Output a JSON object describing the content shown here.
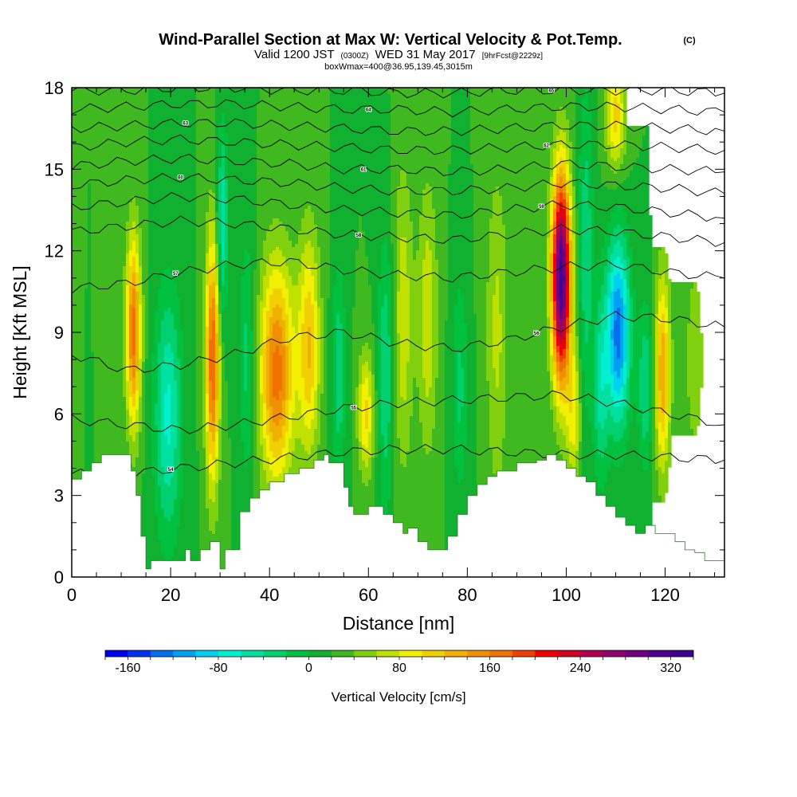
{
  "chart_data": {
    "type": "heatmap",
    "title": "Wind-Parallel Section at Max W: Vertical Velocity & Pot.Temp.",
    "title_mark": "(C)",
    "subtitle": {
      "part1": "Valid 1200 JST",
      "part2": "(0300Z)",
      "part3": "WED 31 May 2017",
      "part4": "[9hrFcst@2229z]"
    },
    "box_info": "boxWmax=400@36.95,139.45,3015m",
    "xlabel": "Distance [nm]",
    "ylabel": "Height [Kft MSL]",
    "xlim": [
      0,
      132
    ],
    "ylim": [
      0,
      18
    ],
    "x_ticks": [
      0,
      20,
      40,
      60,
      80,
      100,
      120
    ],
    "y_ticks": [
      0,
      3,
      6,
      9,
      12,
      15,
      18
    ],
    "x_tick_labels": [
      "0",
      "20",
      "40",
      "60",
      "80",
      "100",
      "120"
    ],
    "y_tick_labels": [
      "0",
      "3",
      "6",
      "9",
      "12",
      "15",
      "18"
    ],
    "terrain_kft": [
      [
        0,
        3.6
      ],
      [
        2,
        3.9
      ],
      [
        4,
        4.2
      ],
      [
        6,
        4.5
      ],
      [
        11,
        4.5
      ],
      [
        12,
        3.9
      ],
      [
        13,
        3.0
      ],
      [
        14,
        1.5
      ],
      [
        15,
        0.3
      ],
      [
        16,
        0.6
      ],
      [
        18,
        0.6
      ],
      [
        22,
        0.6
      ],
      [
        23,
        1.0
      ],
      [
        24,
        0.6
      ],
      [
        26,
        1.0
      ],
      [
        28,
        1.3
      ],
      [
        30,
        0.3
      ],
      [
        31,
        1.0
      ],
      [
        34,
        2.4
      ],
      [
        36,
        2.9
      ],
      [
        38,
        3.2
      ],
      [
        40,
        3.5
      ],
      [
        43,
        3.8
      ],
      [
        46,
        4.0
      ],
      [
        49,
        4.3
      ],
      [
        51,
        4.5
      ],
      [
        52,
        4.2
      ],
      [
        55,
        3.3
      ],
      [
        56,
        2.6
      ],
      [
        57,
        2.3
      ],
      [
        60,
        2.6
      ],
      [
        63,
        2.3
      ],
      [
        65,
        2.0
      ],
      [
        67,
        1.6
      ],
      [
        68,
        1.8
      ],
      [
        70,
        1.3
      ],
      [
        72,
        1.0
      ],
      [
        74,
        1.0
      ],
      [
        76,
        1.5
      ],
      [
        78,
        2.3
      ],
      [
        80,
        3.0
      ],
      [
        82,
        3.4
      ],
      [
        84,
        3.7
      ],
      [
        86,
        3.9
      ],
      [
        90,
        4.2
      ],
      [
        94,
        4.3
      ],
      [
        96,
        4.5
      ],
      [
        98,
        4.3
      ],
      [
        100,
        4.0
      ],
      [
        102,
        3.7
      ],
      [
        104,
        3.5
      ],
      [
        106,
        3.0
      ],
      [
        108,
        2.6
      ],
      [
        110,
        2.2
      ],
      [
        112,
        1.9
      ],
      [
        114,
        1.6
      ],
      [
        116,
        1.9
      ],
      [
        118,
        1.6
      ],
      [
        120,
        1.6
      ],
      [
        122,
        1.3
      ],
      [
        124,
        1.0
      ],
      [
        126,
        0.9
      ],
      [
        128,
        0.6
      ],
      [
        132,
        0.6
      ]
    ],
    "w_base_cms": 20,
    "w_features": [
      {
        "x": 12.5,
        "z": 9.0,
        "sx": 1.5,
        "sz": 3.5,
        "amp": 150
      },
      {
        "x": 19.5,
        "z": 6.0,
        "sx": 2.8,
        "sz": 4.5,
        "amp": -85
      },
      {
        "x": 28.5,
        "z": 8.0,
        "sx": 1.4,
        "sz": 4.5,
        "amp": 160
      },
      {
        "x": 30.5,
        "z": 13.0,
        "sx": 1.1,
        "sz": 3.5,
        "amp": -80
      },
      {
        "x": 35.5,
        "z": 8.0,
        "sx": 1.6,
        "sz": 4.5,
        "amp": -50
      },
      {
        "x": 41.5,
        "z": 7.5,
        "sx": 3.4,
        "sz": 4.0,
        "amp": 150
      },
      {
        "x": 48.0,
        "z": 8.5,
        "sx": 2.2,
        "sz": 4.0,
        "amp": 100
      },
      {
        "x": 54.0,
        "z": 7.5,
        "sx": 1.4,
        "sz": 4.0,
        "amp": -55
      },
      {
        "x": 59.5,
        "z": 6.0,
        "sx": 1.6,
        "sz": 2.2,
        "amp": 85
      },
      {
        "x": 63.5,
        "z": 7.5,
        "sx": 1.6,
        "sz": 5.0,
        "amp": -60
      },
      {
        "x": 67.0,
        "z": 9.5,
        "sx": 2.0,
        "sz": 5.5,
        "amp": 55
      },
      {
        "x": 72.0,
        "z": 9.5,
        "sx": 2.0,
        "sz": 5.0,
        "amp": 55
      },
      {
        "x": 78.5,
        "z": 7.0,
        "sx": 1.6,
        "sz": 4.0,
        "amp": -45
      },
      {
        "x": 86.0,
        "z": 9.0,
        "sx": 2.2,
        "sz": 6.0,
        "amp": 45
      },
      {
        "x": 99.0,
        "z": 11.0,
        "sx": 1.9,
        "sz": 3.8,
        "amp": 310
      },
      {
        "x": 101.5,
        "z": 6.0,
        "sx": 1.5,
        "sz": 2.5,
        "amp": 70
      },
      {
        "x": 104.0,
        "z": 12.0,
        "sx": 1.5,
        "sz": 6.0,
        "amp": -55
      },
      {
        "x": 107.0,
        "z": 7.0,
        "sx": 1.5,
        "sz": 3.5,
        "amp": -65
      },
      {
        "x": 110.5,
        "z": 9.0,
        "sx": 2.4,
        "sz": 3.5,
        "amp": -150
      },
      {
        "x": 116.0,
        "z": 7.0,
        "sx": 1.5,
        "sz": 3.0,
        "amp": -60
      },
      {
        "x": 119.5,
        "z": 7.5,
        "sx": 1.5,
        "sz": 3.5,
        "amp": 120
      },
      {
        "x": 110.0,
        "z": 17.0,
        "sx": 2.0,
        "sz": 2.0,
        "amp": 90
      },
      {
        "x": 126.0,
        "z": 8.0,
        "sx": 3.0,
        "sz": 6.0,
        "amp": 25
      }
    ],
    "colorbar": {
      "min": -180,
      "max": 340,
      "step": 20,
      "ticks": [
        -160,
        -80,
        0,
        80,
        160,
        240,
        320
      ],
      "tick_labels": [
        "-160",
        "-80",
        "0",
        "80",
        "160",
        "240",
        "320"
      ],
      "title": "Vertical Velocity [cm/s]",
      "colors": [
        "#0000f0",
        "#0030f0",
        "#0070f0",
        "#00a0f0",
        "#00d0f0",
        "#00f0d0",
        "#00e0a0",
        "#00d070",
        "#00c040",
        "#10b030",
        "#40b820",
        "#80d010",
        "#c0e000",
        "#f0f000",
        "#f0d000",
        "#f0b000",
        "#f09000",
        "#f07000",
        "#f04000",
        "#f00000",
        "#d00020",
        "#b00050",
        "#900070",
        "#700080",
        "#500090",
        "#400090"
      ]
    },
    "theta_contours": [
      {
        "label": "54",
        "z": [
          3.8,
          3.8,
          4.0,
          4.2,
          4.4,
          4.6,
          4.7,
          4.7,
          4.6,
          4.5,
          4.5,
          4.4,
          4.3
        ]
      },
      {
        "label": "55",
        "z": [
          5.8,
          5.6,
          5.4,
          5.6,
          5.9,
          6.2,
          6.4,
          6.5,
          6.6,
          6.7,
          6.4,
          6.0,
          5.6
        ]
      },
      {
        "label": "56",
        "z": [
          8.2,
          7.6,
          7.8,
          8.2,
          8.8,
          9.0,
          8.6,
          8.4,
          8.7,
          9.2,
          9.6,
          9.5,
          9.2
        ]
      },
      {
        "label": "57",
        "z": [
          10.6,
          10.8,
          11.2,
          11.5,
          11.6,
          11.3,
          11.1,
          11.0,
          11.2,
          11.4,
          11.5,
          11.2,
          11.0
        ]
      },
      {
        "label": "58",
        "z": [
          12.7,
          12.9,
          13.1,
          13.0,
          12.8,
          12.6,
          12.5,
          12.4,
          12.6,
          12.8,
          12.7,
          12.5,
          12.3
        ]
      },
      {
        "label": "59",
        "z": [
          13.6,
          13.8,
          14.0,
          13.9,
          13.7,
          13.5,
          13.4,
          13.3,
          13.5,
          13.7,
          13.6,
          13.4,
          13.2
        ]
      },
      {
        "label": "60",
        "z": [
          14.4,
          14.6,
          14.7,
          14.6,
          14.5,
          14.3,
          14.2,
          14.2,
          14.3,
          14.5,
          14.4,
          14.3,
          14.1
        ]
      },
      {
        "label": "61",
        "z": [
          15.1,
          15.3,
          15.4,
          15.3,
          15.2,
          15.0,
          15.0,
          14.9,
          15.0,
          15.2,
          15.1,
          15.0,
          14.9
        ]
      },
      {
        "label": "62",
        "z": [
          15.8,
          16.0,
          16.1,
          16.0,
          15.9,
          15.8,
          15.7,
          15.7,
          15.8,
          15.9,
          15.9,
          15.8,
          15.7
        ]
      },
      {
        "label": "63",
        "z": [
          16.5,
          16.6,
          16.7,
          16.7,
          16.6,
          16.5,
          16.4,
          16.4,
          16.5,
          16.6,
          16.6,
          16.5,
          16.4
        ]
      },
      {
        "label": "64",
        "z": [
          17.2,
          17.3,
          17.4,
          17.4,
          17.3,
          17.2,
          17.2,
          17.1,
          17.2,
          17.3,
          17.3,
          17.2,
          17.1
        ]
      },
      {
        "label": "65",
        "z": [
          17.9,
          17.9,
          18.0,
          18.0,
          17.9,
          17.9,
          17.8,
          17.8,
          17.9,
          17.9,
          17.9,
          17.9,
          17.8
        ]
      }
    ],
    "theta_contour_x": [
      0,
      11,
      22,
      33,
      44,
      55,
      66,
      77,
      88,
      99,
      110,
      121,
      132
    ]
  }
}
